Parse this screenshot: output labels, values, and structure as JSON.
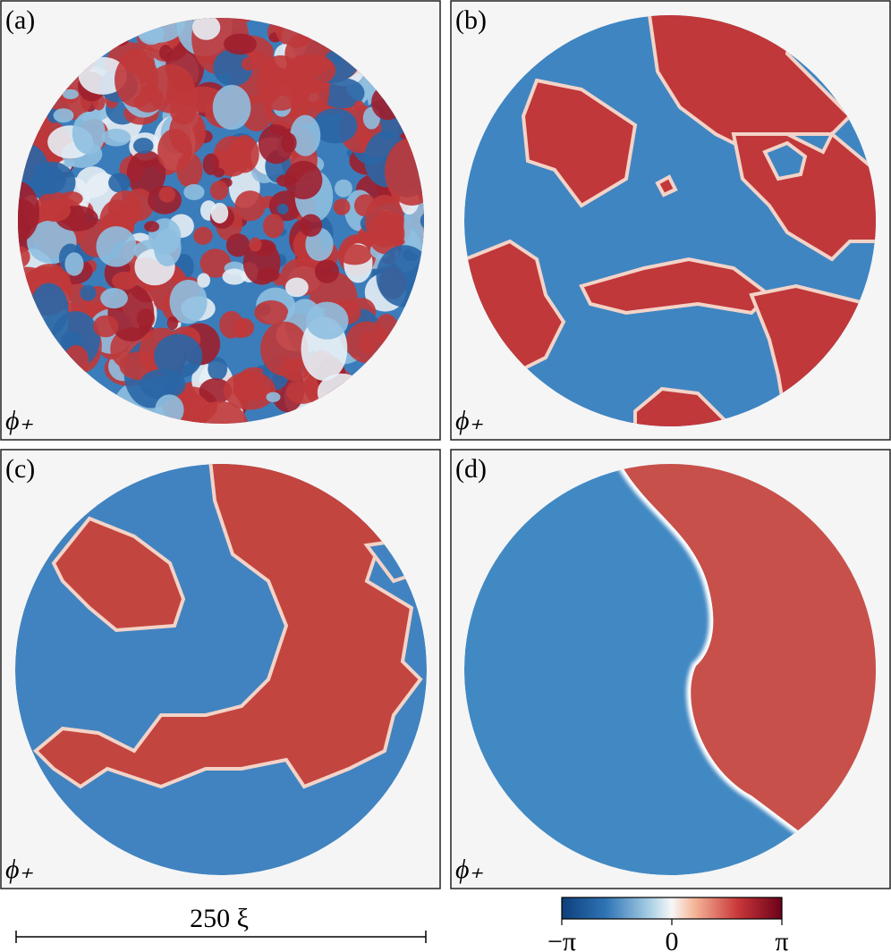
{
  "panels": [
    {
      "label": "(a)",
      "field": "ϕ₊"
    },
    {
      "label": "(b)",
      "field": "ϕ₊"
    },
    {
      "label": "(c)",
      "field": "ϕ₊"
    },
    {
      "label": "(d)",
      "field": "ϕ₊"
    }
  ],
  "scale_bar": {
    "label": "250 ξ"
  },
  "colorbar": {
    "lim": [
      -3.1416,
      3.1416
    ],
    "ticks": [
      {
        "value": -3.1416,
        "label": "−π"
      },
      {
        "value": 0,
        "label": "0"
      },
      {
        "value": 3.1416,
        "label": "π"
      }
    ]
  }
}
